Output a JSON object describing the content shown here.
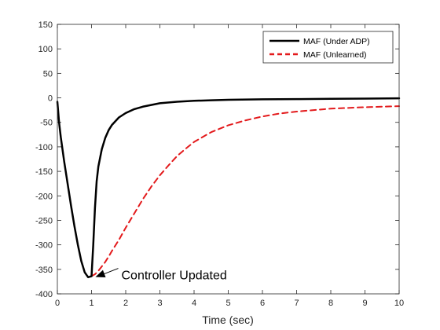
{
  "chart_data": {
    "type": "line",
    "title": "",
    "xlabel": "Time (sec)",
    "ylabel": "",
    "xlim": [
      0,
      10
    ],
    "ylim": [
      -400,
      150
    ],
    "xticks": [
      "0",
      "1",
      "2",
      "3",
      "4",
      "5",
      "6",
      "7",
      "8",
      "9",
      "10"
    ],
    "yticks": [
      "150",
      "100",
      "50",
      "0",
      "-50",
      "-100",
      "-150",
      "-200",
      "-250",
      "-300",
      "-350",
      "-400"
    ],
    "grid": false,
    "legend_position": "top-right",
    "series": [
      {
        "name": "MAF (Under ADP)",
        "color": "#000000",
        "style": "solid",
        "x": [
          0,
          0.05,
          0.1,
          0.2,
          0.3,
          0.4,
          0.5,
          0.6,
          0.7,
          0.8,
          0.9,
          1.0,
          1.05,
          1.1,
          1.15,
          1.2,
          1.3,
          1.4,
          1.5,
          1.6,
          1.8,
          2.0,
          2.25,
          2.5,
          3.0,
          3.5,
          4.0,
          4.5,
          5.0,
          6.0,
          7.0,
          8.0,
          9.0,
          10.0
        ],
        "y": [
          -8,
          -50,
          -80,
          -130,
          -175,
          -220,
          -262,
          -300,
          -333,
          -356,
          -366,
          -364,
          -300,
          -225,
          -170,
          -140,
          -105,
          -82,
          -66,
          -55,
          -40,
          -31,
          -23,
          -18,
          -11,
          -8,
          -6,
          -5,
          -4,
          -3,
          -2.5,
          -2,
          -1.5,
          -1
        ]
      },
      {
        "name": "MAF (Unlearned)",
        "color": "#e31a1c",
        "style": "dashed",
        "x": [
          1.0,
          1.1,
          1.2,
          1.3,
          1.4,
          1.5,
          1.6,
          1.8,
          2.0,
          2.25,
          2.5,
          2.75,
          3.0,
          3.25,
          3.5,
          3.75,
          4.0,
          4.5,
          5.0,
          5.5,
          6.0,
          6.5,
          7.0,
          8.0,
          9.0,
          10.0
        ],
        "y": [
          -364,
          -360,
          -353,
          -344,
          -335,
          -324,
          -312,
          -290,
          -265,
          -236,
          -207,
          -181,
          -158,
          -138,
          -119,
          -104,
          -90,
          -70,
          -56,
          -46,
          -38,
          -32,
          -28,
          -22,
          -19,
          -17
        ]
      }
    ],
    "annotations": [
      {
        "text": "Controller Updated",
        "x": 1.0,
        "y": -364
      }
    ]
  }
}
